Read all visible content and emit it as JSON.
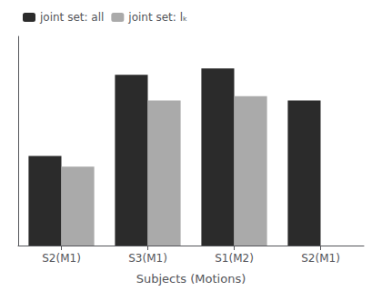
{
  "chart_data": {
    "type": "bar",
    "xlabel": "Subjects (Motions)",
    "categories": [
      "S2(M1)",
      "S3(M1)",
      "S1(M2)",
      "S2(M1)"
    ],
    "series": [
      {
        "name": "joint set: all",
        "color": "#2b2b2b",
        "values": [
          0.42,
          0.8,
          0.83,
          0.68
        ]
      },
      {
        "name": "joint set: lₖ",
        "color": "#aaaaaa",
        "values": [
          0.37,
          0.68,
          0.7,
          null
        ]
      }
    ],
    "ylim": [
      0,
      0.98
    ],
    "yticks": [],
    "tick_labels": "x",
    "grid": false,
    "legend": "upper left"
  }
}
